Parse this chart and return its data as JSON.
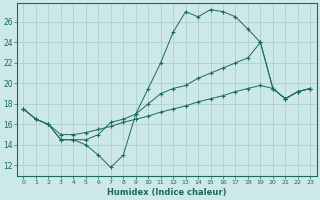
{
  "xlabel": "Humidex (Indice chaleur)",
  "background_color": "#cce8e8",
  "grid_color": "#aacccc",
  "line_color": "#1a6b5a",
  "xlim": [
    -0.5,
    23.5
  ],
  "ylim": [
    11.0,
    27.8
  ],
  "yticks": [
    12,
    14,
    16,
    18,
    20,
    22,
    24,
    26
  ],
  "xticks": [
    0,
    1,
    2,
    3,
    4,
    5,
    6,
    7,
    8,
    9,
    10,
    11,
    12,
    13,
    14,
    15,
    16,
    17,
    18,
    19,
    20,
    21,
    22,
    23
  ],
  "series": [
    [
      17.5,
      16.5,
      16.0,
      14.5,
      14.5,
      14.0,
      13.0,
      11.8,
      13.0,
      17.0,
      19.5,
      22.0,
      25.0,
      27.0,
      26.5,
      27.2,
      27.0,
      26.5,
      25.3,
      24.0,
      19.5,
      18.5,
      19.2,
      19.5
    ],
    [
      17.5,
      16.5,
      16.0,
      14.5,
      14.5,
      14.5,
      15.0,
      16.2,
      16.5,
      17.0,
      18.0,
      19.0,
      19.5,
      19.8,
      20.5,
      21.0,
      21.5,
      22.0,
      22.5,
      24.0,
      19.5,
      18.5,
      19.2,
      19.5
    ],
    [
      17.5,
      16.5,
      16.0,
      15.0,
      15.0,
      15.2,
      15.5,
      15.8,
      16.2,
      16.5,
      16.8,
      17.2,
      17.5,
      17.8,
      18.2,
      18.5,
      18.8,
      19.2,
      19.5,
      19.8,
      19.5,
      18.5,
      19.2,
      19.5
    ]
  ],
  "figsize": [
    3.2,
    2.0
  ],
  "dpi": 100
}
